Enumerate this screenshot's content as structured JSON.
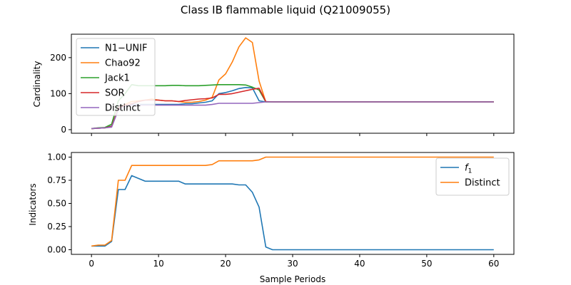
{
  "chart_data": [
    {
      "type": "line",
      "title": "Class IB flammable liquid (Q21009055)",
      "xlabel": "",
      "ylabel": "Cardinality",
      "xlim": [
        -3,
        63
      ],
      "ylim": [
        -10,
        265
      ],
      "xticks": [
        0,
        10,
        20,
        30,
        40,
        50,
        60
      ],
      "yticks": [
        0,
        100,
        200
      ],
      "xtick_labels_visible": false,
      "legend": "upper left",
      "grid": false,
      "x": [
        0,
        1,
        2,
        3,
        4,
        5,
        6,
        7,
        8,
        9,
        10,
        11,
        12,
        13,
        14,
        15,
        16,
        17,
        18,
        19,
        20,
        21,
        22,
        23,
        24,
        25,
        26,
        27,
        28,
        29,
        30,
        31,
        32,
        33,
        34,
        35,
        36,
        37,
        38,
        39,
        40,
        41,
        42,
        43,
        44,
        45,
        46,
        47,
        48,
        49,
        50,
        51,
        52,
        53,
        54,
        55,
        56,
        57,
        58,
        59,
        60
      ],
      "series": [
        {
          "name": "N1−UNIF",
          "color": "#1f77b4",
          "values": [
            3,
            4,
            5,
            10,
            55,
            65,
            70,
            70,
            70,
            70,
            70,
            70,
            70,
            70,
            72,
            72,
            74,
            76,
            80,
            100,
            103,
            108,
            114,
            117,
            116,
            80,
            77,
            77,
            77,
            77,
            77,
            77,
            77,
            77,
            77,
            77,
            77,
            77,
            77,
            77,
            77,
            77,
            77,
            77,
            77,
            77,
            77,
            77,
            77,
            77,
            77,
            77,
            77,
            77,
            77,
            77,
            77,
            77,
            77,
            77,
            77
          ]
        },
        {
          "name": "Chao92",
          "color": "#ff7f0e",
          "values": [
            3,
            4,
            5,
            8,
            60,
            70,
            78,
            80,
            82,
            85,
            82,
            80,
            80,
            78,
            76,
            76,
            78,
            82,
            90,
            138,
            155,
            188,
            230,
            255,
            242,
            135,
            77,
            77,
            77,
            77,
            77,
            77,
            77,
            77,
            77,
            77,
            77,
            77,
            77,
            77,
            77,
            77,
            77,
            77,
            77,
            77,
            77,
            77,
            77,
            77,
            77,
            77,
            77,
            77,
            77,
            77,
            77,
            77,
            77,
            77,
            77
          ]
        },
        {
          "name": "Jack1",
          "color": "#2ca02c",
          "values": [
            3,
            5,
            6,
            15,
            80,
            100,
            125,
            122,
            122,
            122,
            122,
            122,
            123,
            123,
            122,
            122,
            122,
            123,
            124,
            125,
            125,
            125,
            125,
            124,
            118,
            110,
            77,
            77,
            77,
            77,
            77,
            77,
            77,
            77,
            77,
            77,
            77,
            77,
            77,
            77,
            77,
            77,
            77,
            77,
            77,
            77,
            77,
            77,
            77,
            77,
            77,
            77,
            77,
            77,
            77,
            77,
            77,
            77,
            77,
            77,
            77
          ]
        },
        {
          "name": "SOR",
          "color": "#d62728",
          "values": [
            3,
            4,
            5,
            9,
            60,
            68,
            72,
            78,
            82,
            82,
            82,
            80,
            80,
            78,
            81,
            83,
            85,
            86,
            88,
            98,
            98,
            100,
            104,
            108,
            112,
            115,
            78,
            77,
            77,
            77,
            77,
            77,
            77,
            77,
            77,
            77,
            77,
            77,
            77,
            77,
            77,
            77,
            77,
            77,
            77,
            77,
            77,
            77,
            77,
            77,
            77,
            77,
            77,
            77,
            77,
            77,
            77,
            77,
            77,
            77,
            77
          ]
        },
        {
          "name": "Distinct",
          "color": "#9467bd",
          "values": [
            3,
            4,
            5,
            7,
            55,
            65,
            68,
            68,
            68,
            68,
            68,
            68,
            68,
            68,
            68,
            68,
            68,
            68,
            70,
            73,
            73,
            73,
            73,
            73,
            73,
            75,
            77,
            77,
            77,
            77,
            77,
            77,
            77,
            77,
            77,
            77,
            77,
            77,
            77,
            77,
            77,
            77,
            77,
            77,
            77,
            77,
            77,
            77,
            77,
            77,
            77,
            77,
            77,
            77,
            77,
            77,
            77,
            77,
            77,
            77,
            77
          ]
        }
      ]
    },
    {
      "type": "line",
      "title": "",
      "xlabel": "Sample Periods",
      "ylabel": "Indicators",
      "xlim": [
        -3,
        63
      ],
      "ylim": [
        -0.05,
        1.05
      ],
      "xticks": [
        0,
        10,
        20,
        30,
        40,
        50,
        60
      ],
      "yticks": [
        0.0,
        0.25,
        0.5,
        0.75,
        1.0
      ],
      "ytick_labels": [
        "0.00",
        "0.25",
        "0.50",
        "0.75",
        "1.00"
      ],
      "legend": "upper right",
      "grid": false,
      "x": [
        0,
        1,
        2,
        3,
        4,
        5,
        6,
        7,
        8,
        9,
        10,
        11,
        12,
        13,
        14,
        15,
        16,
        17,
        18,
        19,
        20,
        21,
        22,
        23,
        24,
        25,
        26,
        27,
        28,
        29,
        30,
        31,
        32,
        33,
        34,
        35,
        36,
        37,
        38,
        39,
        40,
        41,
        42,
        43,
        44,
        45,
        46,
        47,
        48,
        49,
        50,
        51,
        52,
        53,
        54,
        55,
        56,
        57,
        58,
        59,
        60
      ],
      "series": [
        {
          "name": "f1",
          "name_base": "f",
          "name_sub": "1",
          "color": "#1f77b4",
          "values": [
            0.04,
            0.04,
            0.04,
            0.09,
            0.65,
            0.65,
            0.8,
            0.77,
            0.74,
            0.74,
            0.74,
            0.74,
            0.74,
            0.74,
            0.71,
            0.71,
            0.71,
            0.71,
            0.71,
            0.71,
            0.71,
            0.71,
            0.7,
            0.7,
            0.62,
            0.46,
            0.03,
            0.0,
            0.0,
            0.0,
            0.0,
            0.0,
            0.0,
            0.0,
            0.0,
            0.0,
            0.0,
            0.0,
            0.0,
            0.0,
            0.0,
            0.0,
            0.0,
            0.0,
            0.0,
            0.0,
            0.0,
            0.0,
            0.0,
            0.0,
            0.0,
            0.0,
            0.0,
            0.0,
            0.0,
            0.0,
            0.0,
            0.0,
            0.0,
            0.0,
            0.0
          ]
        },
        {
          "name": "Distinct",
          "color": "#ff7f0e",
          "values": [
            0.04,
            0.05,
            0.05,
            0.1,
            0.75,
            0.75,
            0.91,
            0.91,
            0.91,
            0.91,
            0.91,
            0.91,
            0.91,
            0.91,
            0.91,
            0.91,
            0.91,
            0.91,
            0.92,
            0.96,
            0.96,
            0.96,
            0.96,
            0.96,
            0.96,
            0.97,
            1.0,
            1.0,
            1.0,
            1.0,
            1.0,
            1.0,
            1.0,
            1.0,
            1.0,
            1.0,
            1.0,
            1.0,
            1.0,
            1.0,
            1.0,
            1.0,
            1.0,
            1.0,
            1.0,
            1.0,
            1.0,
            1.0,
            1.0,
            1.0,
            1.0,
            1.0,
            1.0,
            1.0,
            1.0,
            1.0,
            1.0,
            1.0,
            1.0,
            1.0,
            1.0
          ]
        }
      ]
    }
  ]
}
